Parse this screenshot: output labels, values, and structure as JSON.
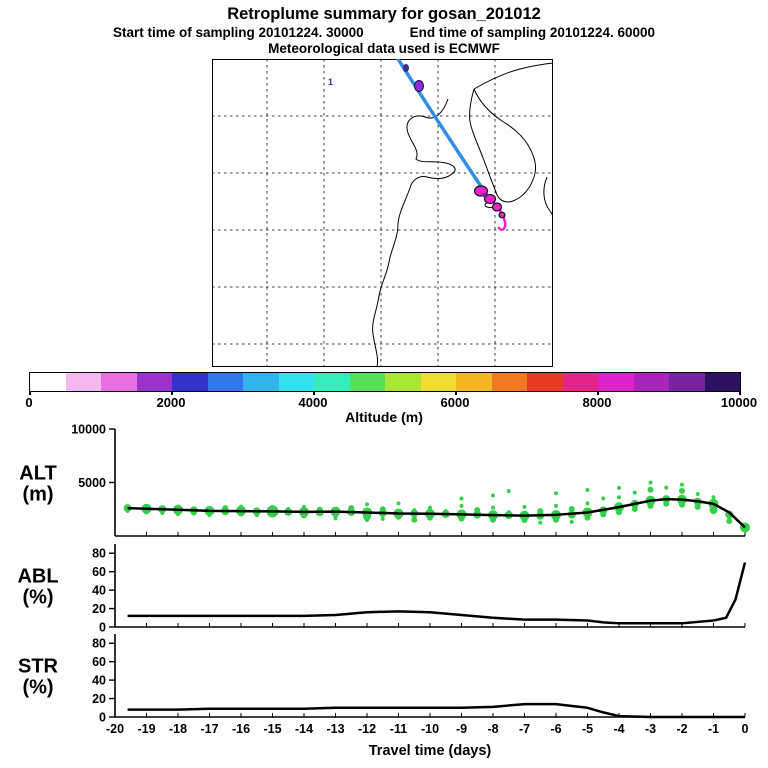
{
  "header": {
    "title": "Retroplume summary for gosan_201012",
    "start_label": "Start time of sampling 20101224. 30000",
    "end_label": "End time of sampling 20101224. 60000",
    "met_label": "Meteorological data used is ECMWF"
  },
  "map": {
    "marker_label": "1",
    "trajectory_color": "#2f8fe8",
    "plume_color": "#ee22cc",
    "plume_dark": "#7a22aa",
    "dot1_color": "#3a2b8f",
    "dot2_color": "#8a2fd1"
  },
  "colorbar": {
    "label": "Altitude (m)",
    "tick_labels": [
      "0",
      "2000",
      "4000",
      "6000",
      "8000",
      "10000"
    ],
    "colors": [
      "#ffffff",
      "#f5b8f0",
      "#e86ee0",
      "#9933cc",
      "#3333cc",
      "#3377e8",
      "#33b3ee",
      "#33e0ee",
      "#33eebb",
      "#55e055",
      "#aae633",
      "#eede33",
      "#f5b623",
      "#f07a23",
      "#e83a23",
      "#e5238a",
      "#dd23cc",
      "#aa23bb",
      "#7723a0",
      "#2b1160"
    ]
  },
  "style": {
    "scatter_green": "#33d04a",
    "line_color": "#000000"
  },
  "x_axis": {
    "min": -20,
    "max": 0,
    "ticks": [
      -20,
      -19,
      -18,
      -17,
      -16,
      -15,
      -14,
      -13,
      -12,
      -11,
      -10,
      -9,
      -8,
      -7,
      -6,
      -5,
      -4,
      -3,
      -2,
      -1,
      0
    ],
    "label": "Travel time (days)"
  },
  "chart_data": [
    {
      "type": "scatter",
      "name": "ALT",
      "ylabel_lines": [
        "ALT",
        "(m)"
      ],
      "ylim": [
        0,
        10000
      ],
      "yticks": [
        5000,
        10000
      ],
      "line": {
        "x": [
          -19.6,
          -19,
          -18,
          -17,
          -16,
          -15,
          -14,
          -13,
          -12,
          -11,
          -10,
          -9,
          -8,
          -7,
          -6,
          -5,
          -4,
          -3.5,
          -3,
          -2.5,
          -2,
          -1.5,
          -1,
          -0.5,
          0
        ],
        "y": [
          2600,
          2550,
          2450,
          2350,
          2320,
          2300,
          2250,
          2280,
          2200,
          2100,
          2080,
          2020,
          1950,
          1900,
          1980,
          2200,
          2700,
          3000,
          3300,
          3450,
          3400,
          3250,
          3000,
          2200,
          800
        ]
      },
      "scatter": [
        [
          -19.6,
          2600,
          4
        ],
        [
          -19.6,
          2350,
          2
        ],
        [
          -19,
          2550,
          5
        ],
        [
          -19,
          2300,
          3
        ],
        [
          -18.5,
          2500,
          4
        ],
        [
          -18.5,
          2150,
          2
        ],
        [
          -18,
          2450,
          5
        ],
        [
          -18,
          2650,
          3
        ],
        [
          -18,
          2050,
          2
        ],
        [
          -17.5,
          2400,
          4
        ],
        [
          -17.5,
          2200,
          3
        ],
        [
          -17,
          2350,
          5
        ],
        [
          -17,
          2550,
          2
        ],
        [
          -17,
          1950,
          2
        ],
        [
          -16.5,
          2320,
          4
        ],
        [
          -16.5,
          2600,
          3
        ],
        [
          -16,
          2350,
          5
        ],
        [
          -16,
          2100,
          3
        ],
        [
          -16,
          2750,
          2
        ],
        [
          -15.5,
          2300,
          4
        ],
        [
          -15.5,
          1950,
          2
        ],
        [
          -15,
          2300,
          6
        ],
        [
          -15,
          2620,
          3
        ],
        [
          -15,
          2000,
          3
        ],
        [
          -14.5,
          2260,
          4
        ],
        [
          -14.5,
          2520,
          2
        ],
        [
          -14,
          2250,
          5
        ],
        [
          -14,
          1920,
          3
        ],
        [
          -14,
          2720,
          2
        ],
        [
          -13.5,
          2220,
          4
        ],
        [
          -13.5,
          2450,
          3
        ],
        [
          -13,
          2280,
          5
        ],
        [
          -13,
          2000,
          3
        ],
        [
          -13,
          1650,
          2
        ],
        [
          -12.5,
          2250,
          4
        ],
        [
          -12.5,
          2600,
          3
        ],
        [
          -12,
          2200,
          5
        ],
        [
          -12,
          1820,
          4
        ],
        [
          -12,
          2950,
          2
        ],
        [
          -12,
          1500,
          2
        ],
        [
          -11.5,
          2150,
          4
        ],
        [
          -11.5,
          2500,
          3
        ],
        [
          -11.5,
          1600,
          2
        ],
        [
          -11,
          2100,
          5
        ],
        [
          -11,
          1800,
          3
        ],
        [
          -11,
          3050,
          2
        ],
        [
          -10.5,
          2100,
          4
        ],
        [
          -10.5,
          2420,
          2
        ],
        [
          -10.5,
          1520,
          3
        ],
        [
          -10,
          2080,
          5
        ],
        [
          -10,
          1720,
          3
        ],
        [
          -10,
          2650,
          2
        ],
        [
          -9.5,
          2050,
          4
        ],
        [
          -9.5,
          2320,
          2
        ],
        [
          -9,
          2020,
          5
        ],
        [
          -9,
          1620,
          3
        ],
        [
          -9,
          2820,
          2
        ],
        [
          -9,
          3500,
          2
        ],
        [
          -8.5,
          2000,
          4
        ],
        [
          -8.5,
          2420,
          3
        ],
        [
          -8,
          1950,
          5
        ],
        [
          -8,
          1520,
          3
        ],
        [
          -8,
          2650,
          2
        ],
        [
          -8,
          3800,
          2
        ],
        [
          -7.5,
          1950,
          4
        ],
        [
          -7.5,
          2220,
          2
        ],
        [
          -7.5,
          4200,
          2
        ],
        [
          -7,
          1900,
          5
        ],
        [
          -7,
          1500,
          3
        ],
        [
          -7,
          2720,
          2
        ],
        [
          -6.5,
          1900,
          4
        ],
        [
          -6.5,
          2320,
          3
        ],
        [
          -6.5,
          1250,
          2
        ],
        [
          -6,
          1960,
          5
        ],
        [
          -6,
          1520,
          3
        ],
        [
          -6,
          2820,
          2
        ],
        [
          -6,
          4000,
          2
        ],
        [
          -5.5,
          2000,
          4
        ],
        [
          -5.5,
          2520,
          3
        ],
        [
          -5.5,
          1320,
          2
        ],
        [
          -5,
          2200,
          5
        ],
        [
          -5,
          1720,
          3
        ],
        [
          -5,
          3050,
          2
        ],
        [
          -5,
          4300,
          2
        ],
        [
          -4.5,
          2400,
          4
        ],
        [
          -4.5,
          2020,
          3
        ],
        [
          -4.5,
          3520,
          2
        ],
        [
          -4,
          2700,
          5
        ],
        [
          -4,
          2220,
          3
        ],
        [
          -4,
          3620,
          2
        ],
        [
          -4,
          4500,
          2
        ],
        [
          -3.5,
          3000,
          4
        ],
        [
          -3.5,
          2520,
          3
        ],
        [
          -3.5,
          4050,
          2
        ],
        [
          -3,
          3300,
          5
        ],
        [
          -3,
          2820,
          3
        ],
        [
          -3,
          4320,
          3
        ],
        [
          -3,
          5000,
          2
        ],
        [
          -2.5,
          3450,
          4
        ],
        [
          -2.5,
          3020,
          3
        ],
        [
          -2.5,
          4520,
          2
        ],
        [
          -2,
          3400,
          5
        ],
        [
          -2,
          2920,
          3
        ],
        [
          -2,
          4220,
          3
        ],
        [
          -2,
          4800,
          2
        ],
        [
          -1.5,
          3200,
          4
        ],
        [
          -1.5,
          2720,
          3
        ],
        [
          -1.5,
          3920,
          2
        ],
        [
          -1,
          3000,
          5
        ],
        [
          -1,
          2420,
          4
        ],
        [
          -1,
          3620,
          2
        ],
        [
          -0.5,
          2000,
          4
        ],
        [
          -0.5,
          1400,
          3
        ],
        [
          0,
          800,
          5
        ]
      ]
    },
    {
      "type": "line",
      "name": "ABL",
      "ylabel_lines": [
        "ABL",
        "(%)"
      ],
      "ylim": [
        0,
        90
      ],
      "yticks": [
        0,
        20,
        40,
        60,
        80
      ],
      "line": {
        "x": [
          -19.6,
          -19,
          -18,
          -17,
          -16,
          -15,
          -14,
          -13,
          -12,
          -11,
          -10,
          -9,
          -8,
          -7,
          -6,
          -5,
          -4.5,
          -4,
          -3,
          -2,
          -1,
          -0.6,
          -0.3,
          0
        ],
        "y": [
          12,
          12,
          12,
          12,
          12,
          12,
          12,
          13,
          16,
          17,
          16,
          13,
          10,
          8,
          8,
          7,
          5,
          4,
          4,
          4,
          7,
          10,
          30,
          70
        ]
      }
    },
    {
      "type": "line",
      "name": "STR",
      "ylabel_lines": [
        "STR",
        "(%)"
      ],
      "ylim": [
        0,
        90
      ],
      "yticks": [
        0,
        20,
        40,
        60,
        80
      ],
      "line": {
        "x": [
          -19.6,
          -19,
          -18,
          -17,
          -16,
          -15,
          -14,
          -13,
          -12,
          -11,
          -10,
          -9,
          -8,
          -7,
          -6,
          -5,
          -4.5,
          -4,
          -3,
          -2,
          -1,
          0
        ],
        "y": [
          8,
          8,
          8,
          9,
          9,
          9,
          9,
          10,
          10,
          10,
          10,
          10,
          11,
          14,
          14,
          10,
          5,
          1,
          0,
          0,
          0,
          0
        ]
      }
    }
  ]
}
